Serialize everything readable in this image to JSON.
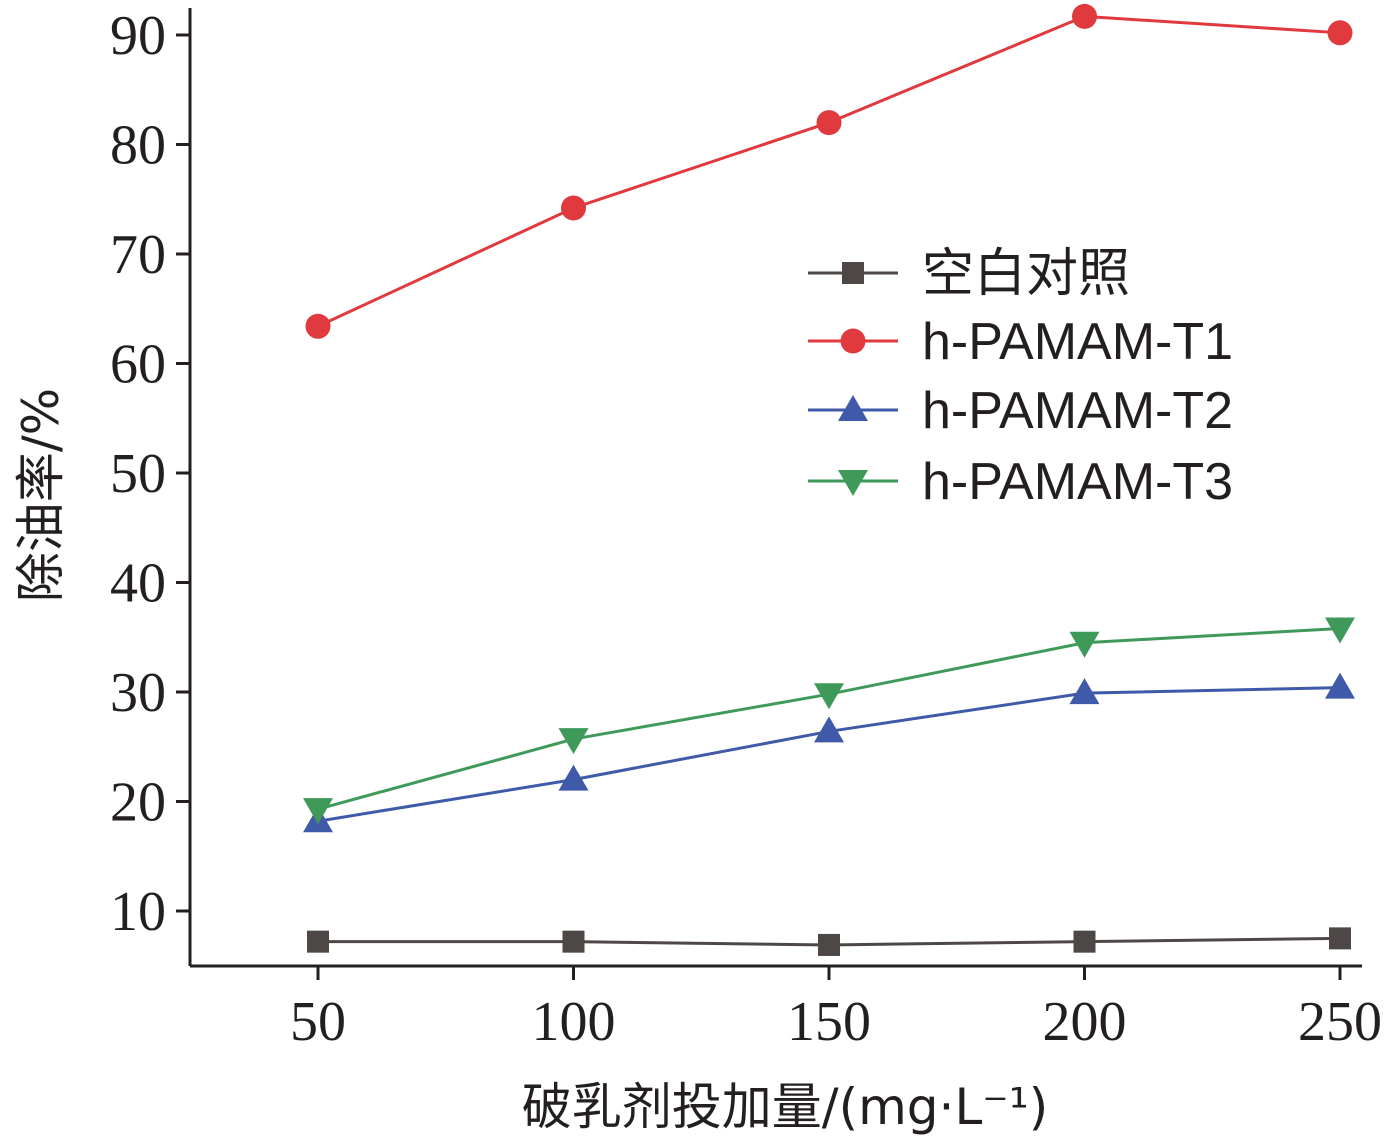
{
  "chart_data": {
    "type": "line",
    "title": "",
    "xlabel": "破乳剂投加量/(mg·L⁻¹)",
    "ylabel": "除油率/%",
    "x": [
      50,
      100,
      150,
      200,
      250
    ],
    "x_ticks": [
      "50",
      "100",
      "150",
      "200",
      "250"
    ],
    "y_ticks": [
      "10",
      "20",
      "30",
      "40",
      "50",
      "60",
      "70",
      "80",
      "90"
    ],
    "ylim": [
      5,
      93
    ],
    "xlim": [
      25,
      255
    ],
    "grid": false,
    "legend_position": "upper-right",
    "series": [
      {
        "name": "空白对照",
        "marker": "square",
        "color": "#4d4845",
        "values": [
          7.2,
          7.2,
          6.9,
          7.2,
          7.5
        ]
      },
      {
        "name": "h-PAMAM-T1",
        "marker": "circle",
        "color": "#e0393e",
        "values": [
          63.4,
          74.2,
          82.0,
          91.7,
          90.2
        ]
      },
      {
        "name": "h-PAMAM-T2",
        "marker": "triangle-up",
        "color": "#3f5aa8",
        "values": [
          18.2,
          22.0,
          26.4,
          29.9,
          30.4
        ]
      },
      {
        "name": "h-PAMAM-T3",
        "marker": "triangle-down",
        "color": "#3f9a5a",
        "values": [
          19.3,
          25.7,
          29.8,
          34.5,
          35.8
        ]
      }
    ]
  }
}
